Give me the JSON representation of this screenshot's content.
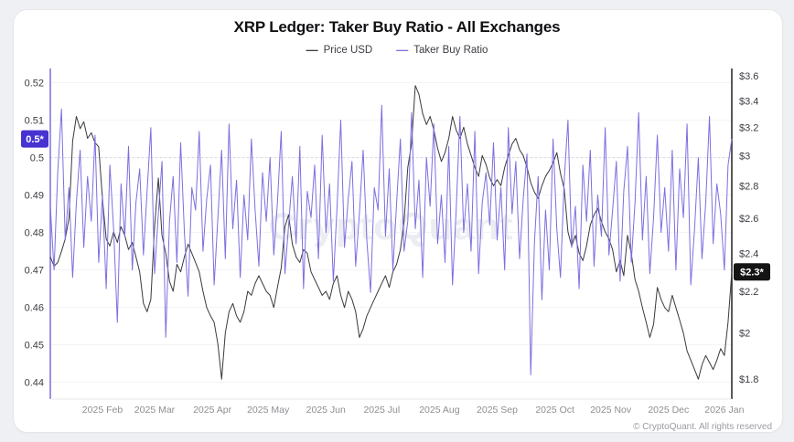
{
  "page": {
    "background": "#eef0f3",
    "card_background": "#ffffff"
  },
  "header": {
    "title": "XRP Ledger: Taker Buy Ratio - All Exchanges"
  },
  "legend": {
    "items": [
      {
        "label": "Price USD",
        "color": "#3a3a3f"
      },
      {
        "label": "Taker Buy Ratio",
        "color": "#7b6fe0"
      }
    ]
  },
  "watermark": "CryptoQuant",
  "footer": "© CryptoQuant. All rights reserved",
  "theme": {
    "grid": "#f3f3f6",
    "ref_dash": "#d6d6dd",
    "axis_label": "#3c3c43",
    "month_label": "#8e8e93",
    "watermark_color": "#ecedf2",
    "right_spine": "#222222",
    "bottom_line": "#e8e8ec"
  },
  "chart_data": {
    "type": "line",
    "title": "XRP Ledger: Taker Buy Ratio - All Exchanges",
    "x_start": "2025-01-04",
    "x_end": "2026-01-05",
    "step_days": 2,
    "total_days": 366,
    "x_labels": [
      {
        "label": "2025 Feb",
        "day": 28
      },
      {
        "label": "2025 Mar",
        "day": 56
      },
      {
        "label": "2025 Apr",
        "day": 87
      },
      {
        "label": "2025 May",
        "day": 117
      },
      {
        "label": "2025 Jun",
        "day": 148
      },
      {
        "label": "2025 Jul",
        "day": 178
      },
      {
        "label": "2025 Aug",
        "day": 209
      },
      {
        "label": "2025 Sep",
        "day": 240
      },
      {
        "label": "2025 Oct",
        "day": 271
      },
      {
        "label": "2025 Nov",
        "day": 301
      },
      {
        "label": "2025 Dec",
        "day": 332
      },
      {
        "label": "2026 Jan",
        "day": 362
      }
    ],
    "left_axis": {
      "name": "Taker Buy Ratio",
      "scale": "linear",
      "domain_top": 0.5238,
      "domain_bottom": 0.4355,
      "ref_line": 0.5,
      "ticks": [
        {
          "v": 0.52,
          "label": "0.52"
        },
        {
          "v": 0.51,
          "label": "0.51"
        },
        {
          "v": 0.5,
          "label": "0.5"
        },
        {
          "v": 0.49,
          "label": "0.49"
        },
        {
          "v": 0.48,
          "label": "0.48"
        },
        {
          "v": 0.47,
          "label": "0.47"
        },
        {
          "v": 0.46,
          "label": "0.46"
        },
        {
          "v": 0.45,
          "label": "0.45"
        },
        {
          "v": 0.44,
          "label": "0.44"
        }
      ],
      "last_value": 0.505,
      "last_value_label": "0.5*",
      "badge_bg": "#4633d0",
      "badge_text": "#ffffff",
      "spine_color": "#7b6fe0"
    },
    "right_axis": {
      "name": "Price USD",
      "scale": "log",
      "domain_top": 3.66,
      "domain_bottom": 1.72,
      "ticks": [
        {
          "v": 3.6,
          "label": "$3.6"
        },
        {
          "v": 3.4,
          "label": "$3.4"
        },
        {
          "v": 3.2,
          "label": "$3.2"
        },
        {
          "v": 3.0,
          "label": "$3"
        },
        {
          "v": 2.8,
          "label": "$2.8"
        },
        {
          "v": 2.6,
          "label": "$2.6"
        },
        {
          "v": 2.4,
          "label": "$2.4"
        },
        {
          "v": 2.2,
          "label": "$2.2"
        },
        {
          "v": 2.0,
          "label": "$2"
        },
        {
          "v": 1.8,
          "label": "$1.8"
        }
      ],
      "last_value": 2.3,
      "last_value_label": "$2.3*",
      "badge_bg": "#141414",
      "badge_text": "#ffffff",
      "spine_color": "#222222"
    },
    "series": [
      {
        "name": "Price USD",
        "axis": "right",
        "color": "#3a3a3f",
        "values": [
          2.38,
          2.33,
          2.35,
          2.41,
          2.48,
          2.6,
          3.1,
          3.28,
          3.19,
          3.24,
          3.12,
          3.16,
          3.09,
          3.06,
          2.72,
          2.48,
          2.44,
          2.52,
          2.46,
          2.55,
          2.5,
          2.42,
          2.46,
          2.38,
          2.3,
          2.14,
          2.1,
          2.16,
          2.55,
          2.85,
          2.5,
          2.4,
          2.25,
          2.2,
          2.34,
          2.3,
          2.38,
          2.45,
          2.4,
          2.35,
          2.3,
          2.2,
          2.12,
          2.08,
          2.05,
          1.95,
          1.8,
          2.0,
          2.1,
          2.14,
          2.08,
          2.05,
          2.1,
          2.2,
          2.18,
          2.24,
          2.28,
          2.24,
          2.2,
          2.18,
          2.12,
          2.22,
          2.32,
          2.55,
          2.62,
          2.45,
          2.38,
          2.35,
          2.42,
          2.4,
          2.3,
          2.26,
          2.22,
          2.18,
          2.2,
          2.16,
          2.24,
          2.28,
          2.18,
          2.12,
          2.2,
          2.16,
          2.1,
          1.98,
          2.02,
          2.08,
          2.12,
          2.16,
          2.2,
          2.24,
          2.28,
          2.22,
          2.3,
          2.34,
          2.42,
          2.58,
          2.92,
          3.08,
          3.52,
          3.45,
          3.3,
          3.22,
          3.28,
          3.18,
          3.05,
          2.96,
          3.02,
          3.12,
          3.28,
          3.18,
          3.12,
          3.2,
          3.08,
          3.0,
          2.92,
          2.86,
          3.0,
          2.94,
          2.85,
          2.8,
          2.84,
          2.8,
          2.92,
          3.0,
          3.08,
          3.12,
          3.04,
          3.0,
          2.92,
          2.82,
          2.76,
          2.72,
          2.8,
          2.86,
          2.9,
          2.95,
          3.02,
          2.88,
          2.78,
          2.52,
          2.44,
          2.5,
          2.4,
          2.36,
          2.44,
          2.56,
          2.62,
          2.66,
          2.58,
          2.52,
          2.48,
          2.42,
          2.3,
          2.36,
          2.28,
          2.5,
          2.4,
          2.26,
          2.2,
          2.12,
          2.05,
          1.98,
          2.04,
          2.22,
          2.16,
          2.12,
          2.1,
          2.18,
          2.12,
          2.06,
          2.0,
          1.92,
          1.88,
          1.84,
          1.8,
          1.86,
          1.9,
          1.87,
          1.84,
          1.88,
          1.93,
          1.9,
          2.05,
          2.3
        ]
      },
      {
        "name": "Taker Buy Ratio",
        "axis": "left",
        "color": "#7b6fe0",
        "values": [
          0.487,
          0.47,
          0.496,
          0.513,
          0.478,
          0.492,
          0.468,
          0.488,
          0.502,
          0.476,
          0.495,
          0.483,
          0.506,
          0.472,
          0.49,
          0.465,
          0.498,
          0.481,
          0.456,
          0.493,
          0.479,
          0.503,
          0.47,
          0.488,
          0.497,
          0.474,
          0.491,
          0.508,
          0.469,
          0.485,
          0.499,
          0.452,
          0.483,
          0.495,
          0.472,
          0.504,
          0.48,
          0.463,
          0.492,
          0.486,
          0.507,
          0.475,
          0.489,
          0.498,
          0.466,
          0.484,
          0.502,
          0.473,
          0.509,
          0.481,
          0.494,
          0.468,
          0.49,
          0.478,
          0.505,
          0.486,
          0.471,
          0.496,
          0.483,
          0.5,
          0.474,
          0.488,
          0.507,
          0.469,
          0.482,
          0.495,
          0.477,
          0.503,
          0.465,
          0.491,
          0.484,
          0.498,
          0.473,
          0.506,
          0.48,
          0.493,
          0.467,
          0.487,
          0.51,
          0.476,
          0.489,
          0.499,
          0.471,
          0.485,
          0.502,
          0.478,
          0.464,
          0.492,
          0.486,
          0.514,
          0.479,
          0.497,
          0.47,
          0.488,
          0.505,
          0.475,
          0.483,
          0.512,
          0.481,
          0.494,
          0.468,
          0.5,
          0.487,
          0.509,
          0.477,
          0.49,
          0.472,
          0.503,
          0.466,
          0.486,
          0.511,
          0.48,
          0.493,
          0.475,
          0.507,
          0.469,
          0.488,
          0.496,
          0.482,
          0.504,
          0.478,
          0.492,
          0.47,
          0.508,
          0.485,
          0.499,
          0.473,
          0.489,
          0.501,
          0.442,
          0.477,
          0.495,
          0.462,
          0.486,
          0.47,
          0.505,
          0.481,
          0.468,
          0.494,
          0.51,
          0.476,
          0.487,
          0.465,
          0.498,
          0.483,
          0.502,
          0.471,
          0.49,
          0.479,
          0.508,
          0.474,
          0.486,
          0.499,
          0.467,
          0.491,
          0.503,
          0.472,
          0.488,
          0.512,
          0.478,
          0.495,
          0.469,
          0.484,
          0.506,
          0.48,
          0.492,
          0.475,
          0.502,
          0.47,
          0.497,
          0.484,
          0.509,
          0.466,
          0.481,
          0.5,
          0.473,
          0.488,
          0.511,
          0.477,
          0.493,
          0.485,
          0.47,
          0.498,
          0.505
        ]
      }
    ]
  }
}
